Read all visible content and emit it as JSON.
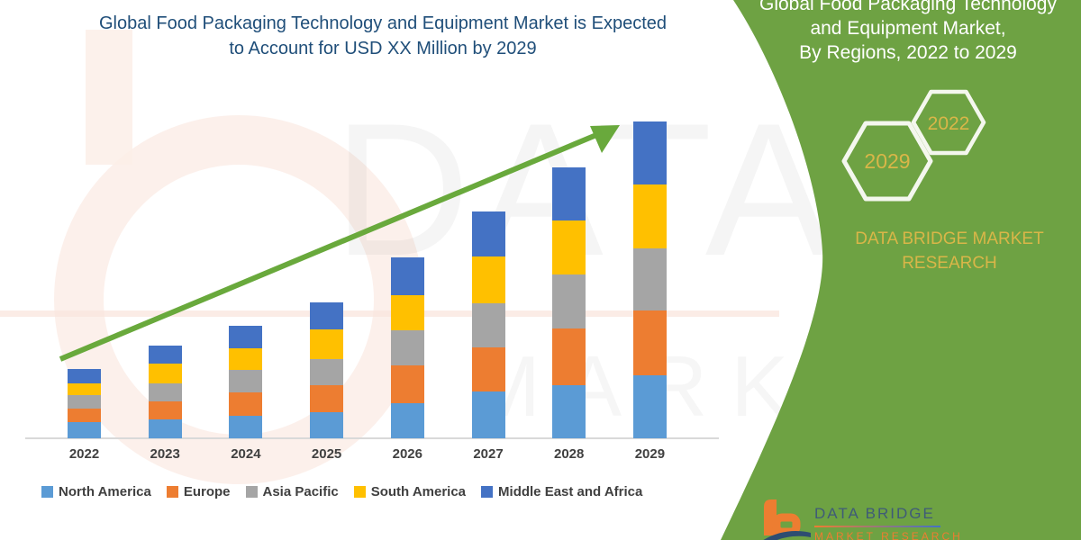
{
  "title": {
    "line1": "Global Food Packaging Technology and Equipment Market is Expected",
    "line2": "to Account for USD XX Million by 2029"
  },
  "watermark": {
    "line1": "DATA BRIDGE",
    "line2": "MARKET RESEARCH"
  },
  "sidebar": {
    "heading": {
      "line1": "Global Food Packaging Technology",
      "line2": "and Equipment Market,",
      "line3": "By Regions, 2022 to 2029"
    },
    "hexagons": [
      {
        "year": "2029"
      },
      {
        "year": "2022"
      }
    ],
    "brand": {
      "line1": "DATA BRIDGE MARKET",
      "line2": "RESEARCH"
    },
    "logo": {
      "name": "DATA BRIDGE",
      "subtext": "MARKET RESEARCH"
    }
  },
  "colors": {
    "panel-green": "#6ea243",
    "arrow-green": "#69a93c",
    "title-blue": "#1f4e79",
    "gold": "#d9b648"
  },
  "chart_data": {
    "type": "bar",
    "stacked": true,
    "title": "Global Food Packaging Technology and Equipment Market is Expected to Account for USD XX Million by 2029",
    "xlabel": "",
    "ylabel": "",
    "y_axis_visible": false,
    "grid": false,
    "legend_position": "bottom",
    "annotations": [
      "upward trend arrow from 2022 to 2029"
    ],
    "note": "no numeric axis shown; values are relative units estimated from bar pixel heights",
    "categories": [
      "2022",
      "2023",
      "2024",
      "2025",
      "2026",
      "2027",
      "2028",
      "2029"
    ],
    "series": [
      {
        "name": "North America",
        "color": "#5B9BD5",
        "values": [
          18,
          21,
          25,
          29,
          39,
          52,
          59,
          70
        ]
      },
      {
        "name": "Europe",
        "color": "#ED7D31",
        "values": [
          15,
          20,
          26,
          30,
          42,
          49,
          63,
          72
        ]
      },
      {
        "name": "Asia Pacific",
        "color": "#A5A5A5",
        "values": [
          15,
          20,
          25,
          29,
          39,
          49,
          60,
          69
        ]
      },
      {
        "name": "South America",
        "color": "#FFC000",
        "values": [
          13,
          22,
          24,
          33,
          39,
          52,
          60,
          71
        ]
      },
      {
        "name": "Middle East and Africa",
        "color": "#4472C4",
        "values": [
          16,
          20,
          25,
          30,
          42,
          50,
          59,
          70
        ]
      }
    ]
  }
}
